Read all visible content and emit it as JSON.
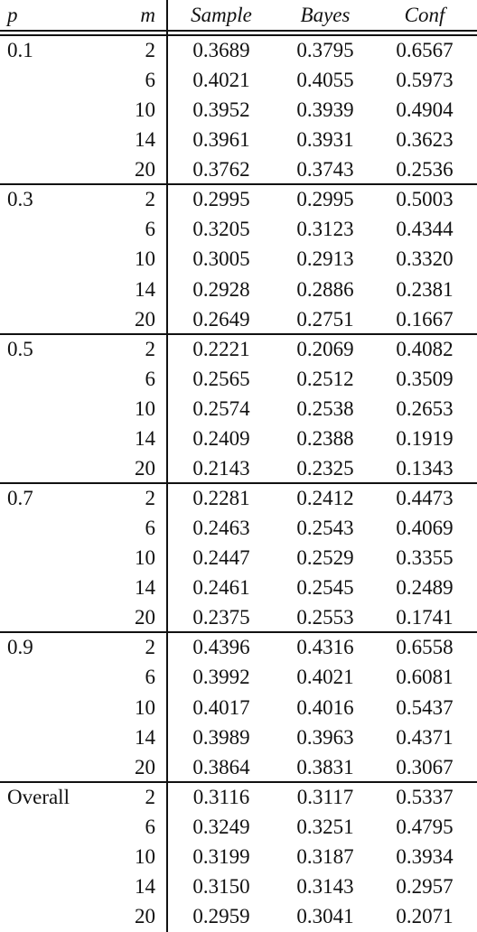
{
  "table": {
    "header": [
      "p",
      "m",
      "Sample",
      "Bayes",
      "Conf"
    ],
    "groups": [
      {
        "p": "0.1",
        "rows": [
          [
            "2",
            "0.3689",
            "0.3795",
            "0.6567"
          ],
          [
            "6",
            "0.4021",
            "0.4055",
            "0.5973"
          ],
          [
            "10",
            "0.3952",
            "0.3939",
            "0.4904"
          ],
          [
            "14",
            "0.3961",
            "0.3931",
            "0.3623"
          ],
          [
            "20",
            "0.3762",
            "0.3743",
            "0.2536"
          ]
        ]
      },
      {
        "p": "0.3",
        "rows": [
          [
            "2",
            "0.2995",
            "0.2995",
            "0.5003"
          ],
          [
            "6",
            "0.3205",
            "0.3123",
            "0.4344"
          ],
          [
            "10",
            "0.3005",
            "0.2913",
            "0.3320"
          ],
          [
            "14",
            "0.2928",
            "0.2886",
            "0.2381"
          ],
          [
            "20",
            "0.2649",
            "0.2751",
            "0.1667"
          ]
        ]
      },
      {
        "p": "0.5",
        "rows": [
          [
            "2",
            "0.2221",
            "0.2069",
            "0.4082"
          ],
          [
            "6",
            "0.2565",
            "0.2512",
            "0.3509"
          ],
          [
            "10",
            "0.2574",
            "0.2538",
            "0.2653"
          ],
          [
            "14",
            "0.2409",
            "0.2388",
            "0.1919"
          ],
          [
            "20",
            "0.2143",
            "0.2325",
            "0.1343"
          ]
        ]
      },
      {
        "p": "0.7",
        "rows": [
          [
            "2",
            "0.2281",
            "0.2412",
            "0.4473"
          ],
          [
            "6",
            "0.2463",
            "0.2543",
            "0.4069"
          ],
          [
            "10",
            "0.2447",
            "0.2529",
            "0.3355"
          ],
          [
            "14",
            "0.2461",
            "0.2545",
            "0.2489"
          ],
          [
            "20",
            "0.2375",
            "0.2553",
            "0.1741"
          ]
        ]
      },
      {
        "p": "0.9",
        "rows": [
          [
            "2",
            "0.4396",
            "0.4316",
            "0.6558"
          ],
          [
            "6",
            "0.3992",
            "0.4021",
            "0.6081"
          ],
          [
            "10",
            "0.4017",
            "0.4016",
            "0.5437"
          ],
          [
            "14",
            "0.3989",
            "0.3963",
            "0.4371"
          ],
          [
            "20",
            "0.3864",
            "0.3831",
            "0.3067"
          ]
        ]
      },
      {
        "p": "Overall",
        "rows": [
          [
            "2",
            "0.3116",
            "0.3117",
            "0.5337"
          ],
          [
            "6",
            "0.3249",
            "0.3251",
            "0.4795"
          ],
          [
            "10",
            "0.3199",
            "0.3187",
            "0.3934"
          ],
          [
            "14",
            "0.3150",
            "0.3143",
            "0.2957"
          ],
          [
            "20",
            "0.2959",
            "0.3041",
            "0.2071"
          ]
        ]
      }
    ]
  }
}
